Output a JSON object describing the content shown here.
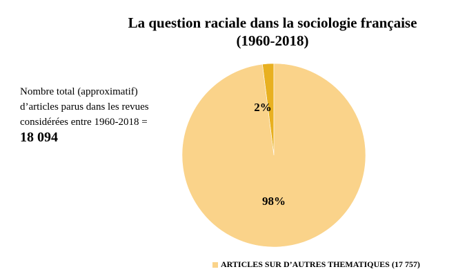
{
  "title_line1": "La question raciale dans la sociologie française",
  "title_line2": "(1960-2018)",
  "side_note": {
    "text": "Nombre total (approximatif) d’articles parus dans les revues considérées entre 1960-2018 = ",
    "total": "18 094"
  },
  "colors": {
    "major_slice": "#FAD38A",
    "minor_slice": "#E8B020",
    "background": "#FFFFFF"
  },
  "chart_data": {
    "type": "pie",
    "slices": [
      {
        "label": "2%",
        "value": 2,
        "color": "#E8B020"
      },
      {
        "label": "98%",
        "value": 98,
        "color": "#FAD38A"
      }
    ],
    "legend": [
      {
        "label": "ARTICLES SUR D’AUTRES THEMATIQUES (17 757)",
        "color": "#FAD38A"
      }
    ],
    "legend_position": "bottom"
  }
}
